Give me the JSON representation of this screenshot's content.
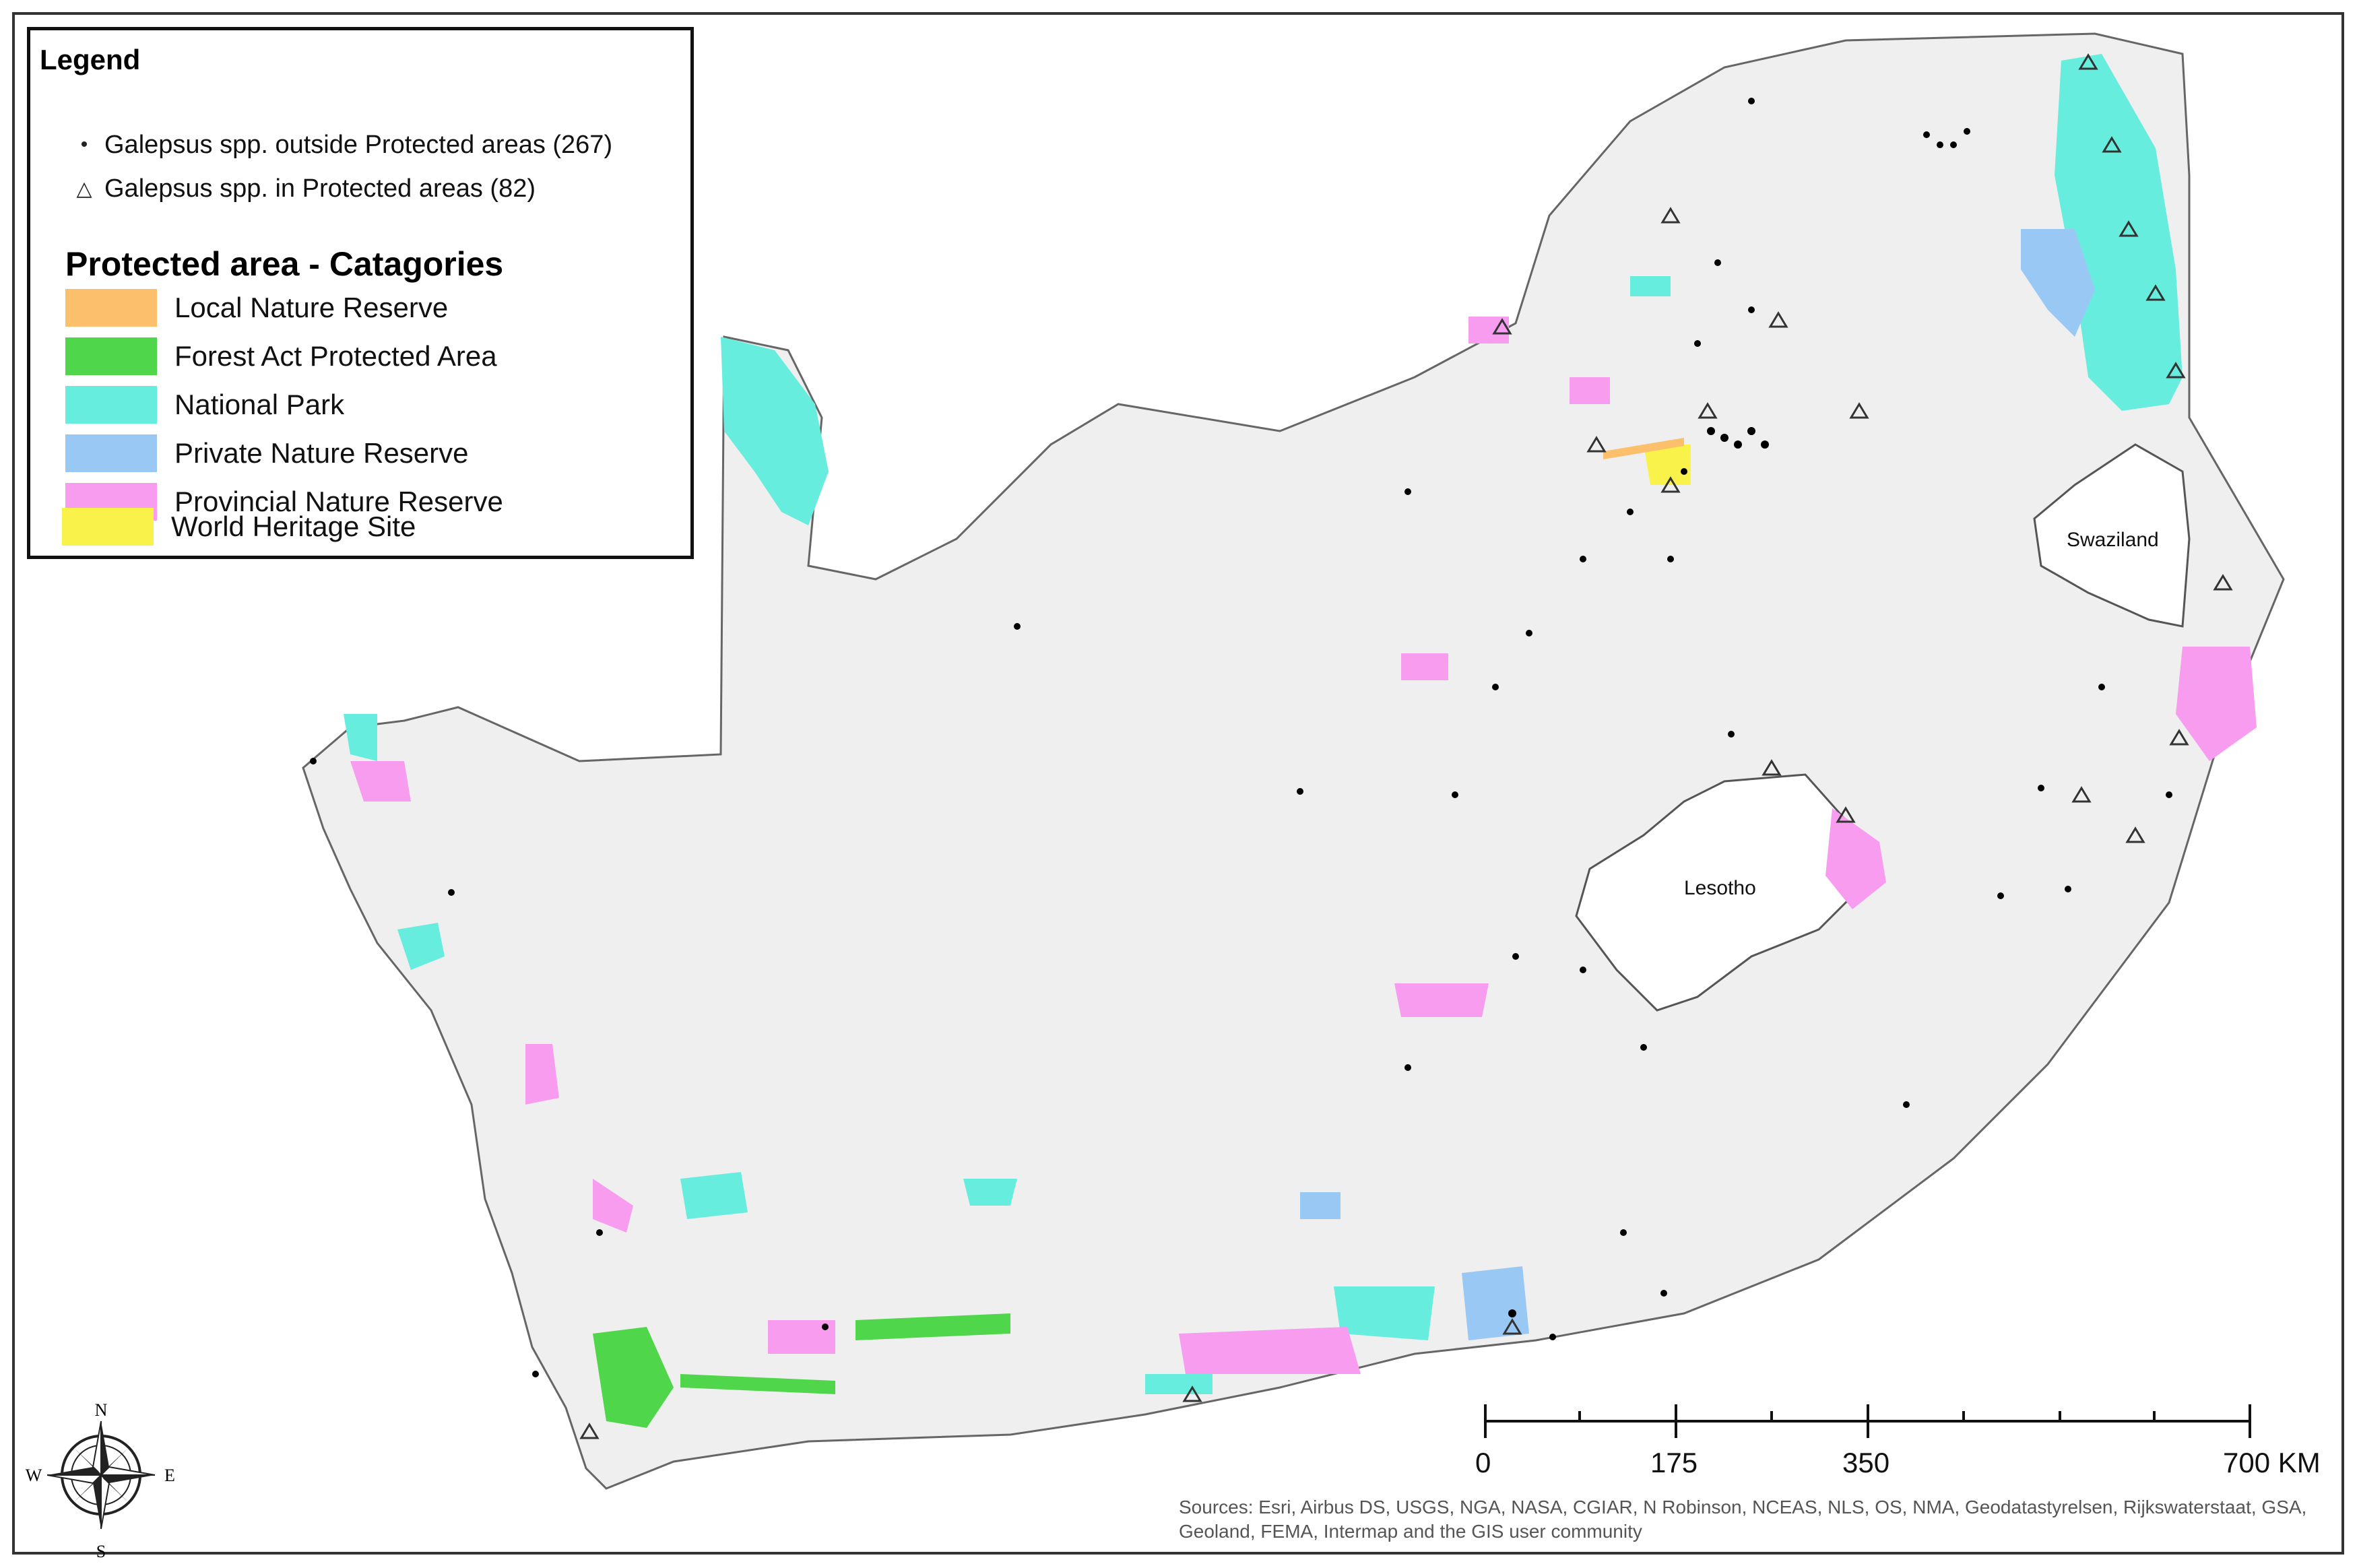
{
  "legend": {
    "title": "Legend",
    "points": [
      {
        "symbol": "•",
        "label": "Galepsus spp. outside Protected areas (267)"
      },
      {
        "symbol": "△",
        "label": "Galepsus spp. in Protected areas (82)"
      }
    ],
    "categories_title": "Protected area - Catagories",
    "categories": [
      {
        "label": "Local Nature Reserve",
        "color": "#fcbf6b"
      },
      {
        "label": "Forest Act Protected Area",
        "color": "#4fd64a"
      },
      {
        "label": "National Park",
        "color": "#66eddd"
      },
      {
        "label": "Private Nature Reserve",
        "color": "#9ac8f5"
      },
      {
        "label": "Provincial Nature Reserve",
        "color": "#f89cf0"
      },
      {
        "label": "World Heritage Site",
        "color": "#f8f24a"
      }
    ]
  },
  "labels": {
    "swaziland": "Swaziland",
    "lesotho": "Lesotho"
  },
  "compass": {
    "n": "N",
    "s": "S",
    "e": "E",
    "w": "W"
  },
  "scale": {
    "ticks": [
      "0",
      "175",
      "350",
      "700 KM"
    ]
  },
  "attribution": "Sources: Esri, Airbus DS, USGS, NGA, NASA, CGIAR, N Robinson, NCEAS, NLS, OS, NMA, Geodatastyrelsen, Rijkswaterstaat, GSA, Geoland, FEMA, Intermap and the GIS user community",
  "colors": {
    "land": "#efefef",
    "outline": "#555555"
  }
}
